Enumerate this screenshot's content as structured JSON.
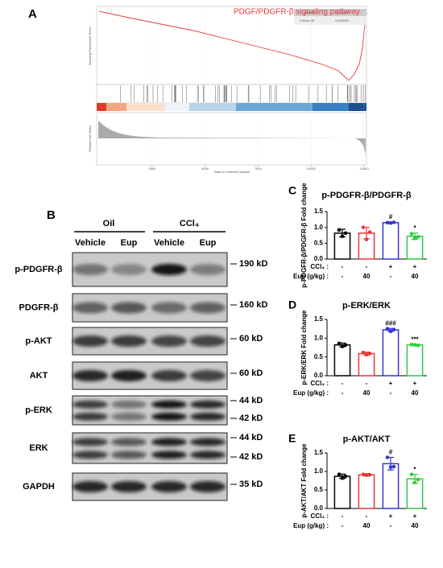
{
  "panels": [
    "A",
    "B",
    "C",
    "D",
    "E"
  ],
  "gsea": {
    "title": "PDGF/PDGFR-β signaling pathway",
    "ylabel": "Running Enrichment Score",
    "ylabel2": "Ranked List Metric",
    "xlabel": "Rank in Ordered Dataset",
    "xlim": [
      0,
      12500
    ],
    "xticks": [
      2500,
      5000,
      7500,
      10000,
      12500
    ],
    "table_header": [
      "pvalue",
      "p.adjust"
    ],
    "table_row": [
      "3.504e-05",
      "0.000035"
    ]
  },
  "blot": {
    "groups": [
      "Oil",
      "CCl₄"
    ],
    "treatments": [
      "Vehicle",
      "Eup",
      "Vehicle",
      "Eup"
    ],
    "rows": [
      {
        "label": "p-PDGFR-β",
        "sizes": [
          "190 kD"
        ]
      },
      {
        "label": "PDGFR-β",
        "sizes": [
          "160 kD"
        ]
      },
      {
        "label": "p-AKT",
        "sizes": [
          "60 kD"
        ]
      },
      {
        "label": "AKT",
        "sizes": [
          "60 kD"
        ]
      },
      {
        "label": "p-ERK",
        "sizes": [
          "44 kD",
          "42 kD"
        ]
      },
      {
        "label": "ERK",
        "sizes": [
          "44 kD",
          "42 kD"
        ]
      },
      {
        "label": "GAPDH",
        "sizes": [
          "35 kD"
        ]
      }
    ]
  },
  "chart_data": [
    {
      "type": "bar",
      "title": "p-PDGFR-β/PDGFR-β",
      "ylabel": "p-PDGFR-β/PDGFR-β Fold change",
      "row_labels": [
        "CCl₄ :",
        "Eup (g/kg) :"
      ],
      "ccl4": [
        "-",
        "-",
        "+",
        "+"
      ],
      "eup": [
        "-",
        "40",
        "-",
        "40"
      ],
      "colors": [
        "#000000",
        "#e8383b",
        "#3535d6",
        "#2ecc40"
      ],
      "values": [
        0.82,
        0.82,
        1.15,
        0.72
      ],
      "errors": [
        0.12,
        0.18,
        0.02,
        0.1
      ],
      "points": [
        [
          0.92,
          0.72,
          0.82
        ],
        [
          1.0,
          0.62,
          0.85
        ],
        [
          1.15,
          1.14,
          1.16
        ],
        [
          0.8,
          0.66,
          0.7
        ]
      ],
      "annotations": [
        null,
        null,
        "#",
        "*"
      ],
      "ylim": [
        0,
        1.5
      ],
      "yticks": [
        {
          "value": 0,
          "label": "0.0"
        },
        0.5,
        {
          "value": 1,
          "label": "1.0"
        },
        1.5
      ]
    },
    {
      "type": "bar",
      "title": "p-ERK/ERK",
      "ylabel": "p-ERK/ERK Fold change",
      "row_labels": [
        "CCl₄ :",
        "Eup (g/kg) :"
      ],
      "ccl4": [
        "-",
        "-",
        "+",
        "+"
      ],
      "eup": [
        "-",
        "40",
        "-",
        "40"
      ],
      "colors": [
        "#000000",
        "#e8383b",
        "#3535d6",
        "#2ecc40"
      ],
      "values": [
        0.82,
        0.59,
        1.22,
        0.82
      ],
      "errors": [
        0.05,
        0.04,
        0.04,
        0.01
      ],
      "points": [
        [
          0.86,
          0.78,
          0.82
        ],
        [
          0.62,
          0.56,
          0.59
        ],
        [
          1.25,
          1.18,
          1.23
        ],
        [
          0.83,
          0.82,
          0.81
        ]
      ],
      "annotations": [
        null,
        null,
        "###",
        "***"
      ],
      "ylim": [
        0,
        1.5
      ],
      "yticks": [
        {
          "value": 0,
          "label": "0.0"
        },
        0.5,
        {
          "value": 1,
          "label": "1.0"
        },
        1.5
      ]
    },
    {
      "type": "bar",
      "title": "p-AKT/AKT",
      "ylabel": "p-AKT/AKT Fold change",
      "row_labels": [
        "CCl₄ :",
        "Eup (g/kg) :"
      ],
      "ccl4": [
        "-",
        "-",
        "+",
        "+"
      ],
      "eup": [
        "-",
        "40",
        "-",
        "40"
      ],
      "colors": [
        "#000000",
        "#e8383b",
        "#3535d6",
        "#2ecc40"
      ],
      "values": [
        0.87,
        0.91,
        1.21,
        0.8
      ],
      "errors": [
        0.06,
        0.03,
        0.17,
        0.12
      ],
      "points": [
        [
          0.92,
          0.82,
          0.87
        ],
        [
          0.92,
          0.9,
          0.91
        ],
        [
          1.38,
          1.12,
          1.13
        ],
        [
          0.92,
          0.7,
          0.78
        ]
      ],
      "annotations": [
        null,
        null,
        "#",
        "*"
      ],
      "ylim": [
        0,
        1.5
      ],
      "yticks": [
        {
          "value": 0,
          "label": "0.0"
        },
        0.5,
        {
          "value": 1,
          "label": "1.0"
        },
        1.5
      ]
    }
  ]
}
